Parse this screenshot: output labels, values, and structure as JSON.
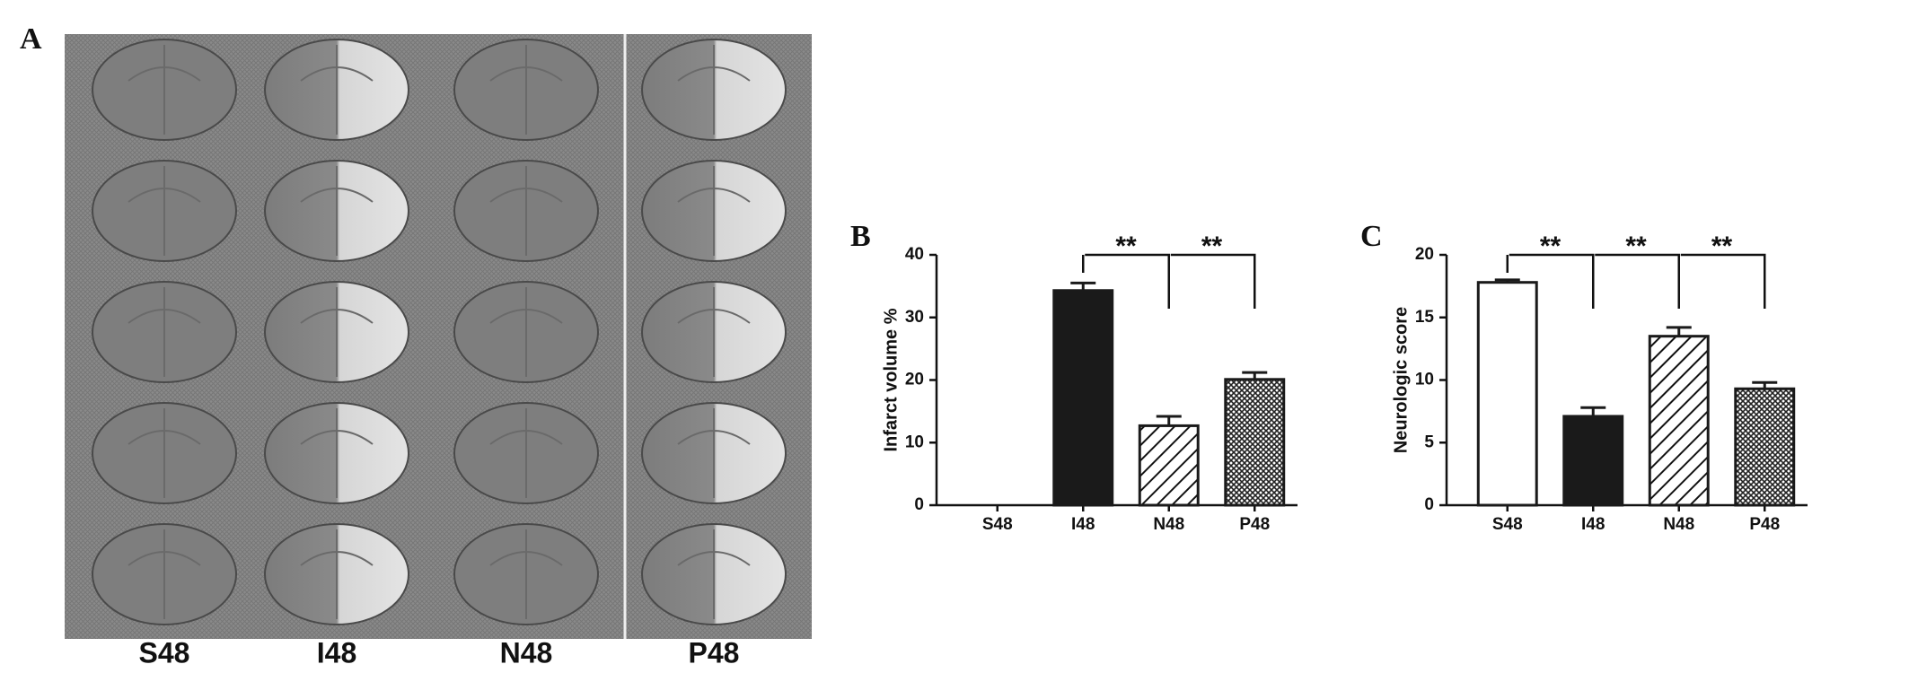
{
  "figure": {
    "panel_a": {
      "label": "A",
      "columns": [
        "S48",
        "I48",
        "N48",
        "P48"
      ]
    }
  },
  "chart_data": [
    {
      "type": "bar",
      "panel_label": "B",
      "y_label": "Infarct volume %",
      "categories": [
        "S48",
        "I48",
        "N48",
        "P48"
      ],
      "values": [
        0,
        34.3,
        12.7,
        20.1
      ],
      "errors": [
        null,
        1.2,
        1.5,
        1.1
      ],
      "bar_styles": [
        "open",
        "solid",
        "hatched",
        "cross-hatched"
      ],
      "color": "#1a1a1a",
      "ylim": [
        0,
        40
      ],
      "yticks": [
        0,
        10,
        20,
        30,
        40
      ],
      "grid": false,
      "annotations": [
        {
          "label": "**",
          "between": [
            "I48",
            "N48"
          ]
        },
        {
          "label": "**",
          "between": [
            "N48",
            "P48"
          ]
        }
      ]
    },
    {
      "type": "bar",
      "panel_label": "C",
      "y_label": "Neurologic score",
      "categories": [
        "S48",
        "I48",
        "N48",
        "P48"
      ],
      "values": [
        17.8,
        7.1,
        13.5,
        9.3
      ],
      "errors": [
        0.2,
        0.7,
        0.7,
        0.5
      ],
      "bar_styles": [
        "open",
        "solid",
        "hatched",
        "cross-hatched"
      ],
      "color": "#1a1a1a",
      "ylim": [
        0,
        20
      ],
      "yticks": [
        0,
        5,
        10,
        15,
        20
      ],
      "grid": false,
      "annotations": [
        {
          "label": "**",
          "between": [
            "S48",
            "I48"
          ]
        },
        {
          "label": "**",
          "between": [
            "I48",
            "N48"
          ]
        },
        {
          "label": "**",
          "between": [
            "N48",
            "P48"
          ]
        }
      ]
    }
  ]
}
